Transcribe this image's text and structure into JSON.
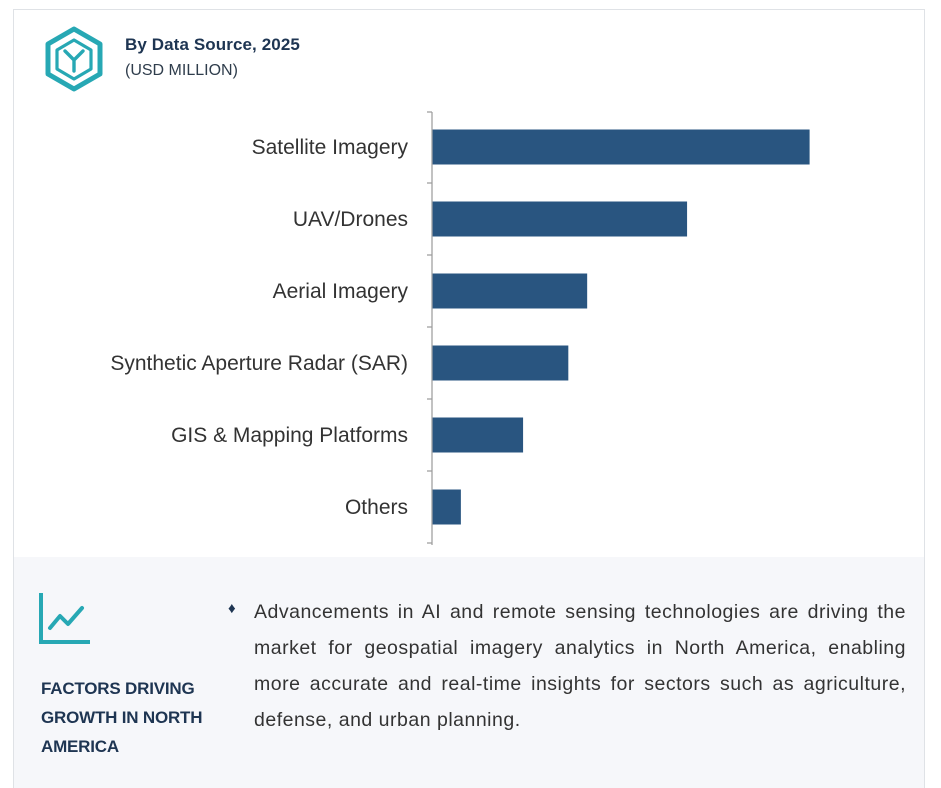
{
  "header": {
    "title": "By Data Source, 2025",
    "subtitle": "(USD MILLION)",
    "icon": "hexagon-y-logo-icon"
  },
  "colors": {
    "bar": "#295580",
    "axis": "#9a9a9a",
    "accent_teal": "#27a8b4",
    "heading": "#1e3552",
    "panel_bg": "#f6f7fa"
  },
  "chart_data": {
    "type": "bar",
    "orientation": "horizontal",
    "title": "By Data Source, 2025",
    "subtitle": "(USD MILLION)",
    "categories": [
      "Satellite Imagery",
      "UAV/Drones",
      "Aerial Imagery",
      "Synthetic Aperture Radar (SAR)",
      "GIS & Mapping Platforms",
      "Others"
    ],
    "values": [
      100,
      67.5,
      41,
      36,
      24,
      7.5
    ],
    "value_axis_ticks_shown": false,
    "grid": false,
    "legend": "none"
  },
  "factors": {
    "icon": "trend-chart-icon",
    "heading": "FACTORS DRIVING GROWTH IN NORTH AMERICA",
    "bullet_marker": "♦",
    "bullets": [
      "Advancements in AI and remote sensing technologies are driving the market for geospatial imagery analytics in North America, enabling more accurate and real-time insights for sectors such as agriculture, defense, and urban planning."
    ]
  }
}
